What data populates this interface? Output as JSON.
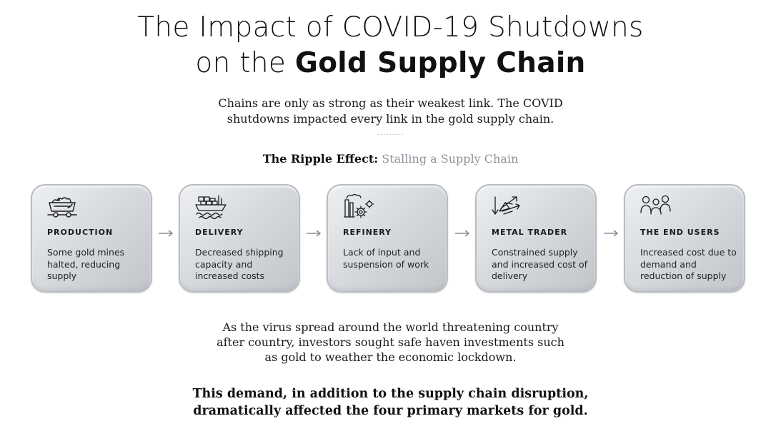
{
  "title": {
    "line1": "The Impact of COVID-19 Shutdowns",
    "line2_prefix": "on the ",
    "line2_bold": "Gold Supply Chain"
  },
  "subtitle": {
    "line1": "Chains are only as strong as their weakest link. The COVID",
    "line2": "shutdowns impacted every link in the gold supply chain."
  },
  "divider": "·········",
  "ripple": {
    "bold": "The Ripple Effect:",
    "light": " Stalling a Supply Chain"
  },
  "stages": [
    {
      "icon": "mine-cart-icon",
      "label": "PRODUCTION",
      "desc": "Some gold mines halted, reducing supply"
    },
    {
      "icon": "cargo-ship-icon",
      "label": "DELIVERY",
      "desc": "Decreased shipping capacity and increased costs"
    },
    {
      "icon": "refinery-gears-icon",
      "label": "REFINERY",
      "desc": "Lack of input and suspension of work"
    },
    {
      "icon": "trade-arrows-icon",
      "label": "METAL TRADER",
      "desc": "Constrained supply and increased cost of delivery"
    },
    {
      "icon": "people-icon",
      "label": "THE END USERS",
      "desc": "Increased cost due to demand and reduction of supply"
    }
  ],
  "body": {
    "line1": "As the virus spread around the world threatening country",
    "line2": "after country, investors sought safe haven investments such",
    "line3": "as gold to weather the economic lockdown."
  },
  "conclusion": {
    "line1": "This demand, in addition to the supply chain disruption,",
    "line2": "dramatically affected the four primary markets for gold."
  },
  "colors": {
    "card_light": "#eef0f2",
    "card_dark": "#c2c6cb",
    "muted_text": "#8c9399",
    "arrow": "#8a8f94"
  }
}
